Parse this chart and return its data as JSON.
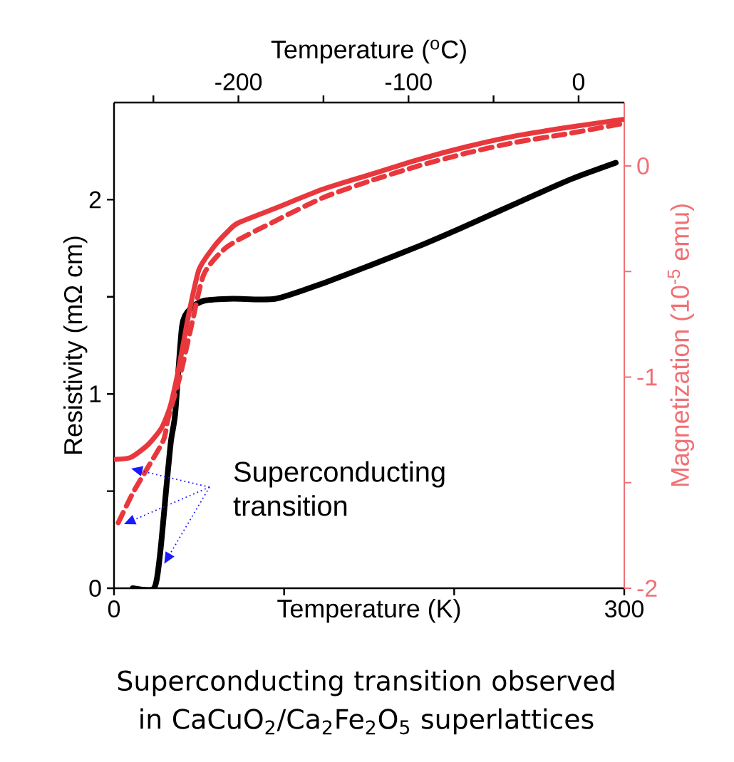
{
  "chart_data": {
    "type": "line",
    "xlabel": "Temperature (K)",
    "ylabel": "Resistivity (mΩ cm)",
    "y2label": "Magnetization (10$^{-5}$ emu)",
    "x2label": "Temperature ($^{o}$C)",
    "xlim": [
      0,
      300
    ],
    "xticks": [
      0,
      {
        "value": 100,
        "label": null
      },
      {
        "value": 200,
        "label": null
      },
      300
    ],
    "ylim": [
      0,
      2.5
    ],
    "yticks": [
      0,
      {
        "value": 0.5,
        "label": null
      },
      1,
      {
        "value": 1.5,
        "label": null
      },
      2
    ],
    "y2lim": [
      -2,
      0.3
    ],
    "y2ticks": [
      -2,
      {
        "value": -1.5,
        "label": null
      },
      -1,
      {
        "value": -0.5,
        "label": null
      },
      0
    ],
    "x2lim": [
      -273.15,
      26.85
    ],
    "x2ticks": [
      {
        "value": -250,
        "label": null
      },
      -200,
      {
        "value": -150,
        "label": null
      },
      -100,
      {
        "value": -50,
        "label": null
      },
      0
    ],
    "series": [
      {
        "color": "#000000",
        "line_style": "solid",
        "x": [
          11,
          23.5,
          27,
          31,
          33.5,
          36,
          40,
          45,
          53,
          70,
          95,
          123,
          150,
          179,
          203,
          226,
          249,
          270,
          295
        ],
        "values": [
          0,
          0,
          0.17,
          0.54,
          0.76,
          0.9,
          1.35,
          1.44,
          1.48,
          1.49,
          1.49,
          1.57,
          1.66,
          1.76,
          1.85,
          1.94,
          2.03,
          2.11,
          2.19
        ]
      },
      {
        "color": "#e8383d",
        "line_style": "solid",
        "axis": "y2",
        "x": [
          1,
          10,
          20,
          28,
          33,
          37,
          41,
          44,
          50,
          59,
          67,
          73,
          95,
          123,
          151,
          179,
          207,
          235,
          265,
          299
        ],
        "values": [
          -1.39,
          -1.38,
          -1.32,
          -1.24,
          -1.14,
          -1.0,
          -0.83,
          -0.7,
          -0.49,
          -0.38,
          -0.31,
          -0.27,
          -0.2,
          -0.11,
          -0.04,
          0.03,
          0.09,
          0.14,
          0.18,
          0.22
        ]
      },
      {
        "color": "#e8383d",
        "line_style": "dashed",
        "axis": "y2",
        "x": [
          2.5,
          11,
          19,
          29,
          32,
          39,
          46,
          53,
          67,
          95,
          123,
          151,
          179,
          207,
          235,
          265,
          299
        ],
        "values": [
          -1.69,
          -1.55,
          -1.44,
          -1.3,
          -1.19,
          -0.99,
          -0.74,
          -0.51,
          -0.38,
          -0.26,
          -0.15,
          -0.07,
          0.0,
          0.06,
          0.11,
          0.15,
          0.2
        ]
      }
    ],
    "annotations": [
      {
        "text": "Superconducting transition",
        "x": 27,
        "y": 0.17
      },
      "Superconducting transition observed in CaCuO$_{2}$/Ca$_{2}$Fe$_{2}$O$_{5}$ superlattices"
    ]
  }
}
